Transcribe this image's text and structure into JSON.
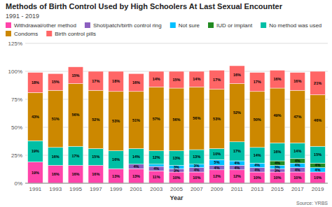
{
  "chart_data": {
    "type": "bar",
    "stacked": true,
    "title": "Methods of Birth Control Used by High Schoolers At Last Sexual Encounter",
    "subtitle": "1991 - 2019",
    "xlabel": "Year",
    "source": "Source: YRBS",
    "categories": [
      "1991",
      "1993",
      "1995",
      "1997",
      "1999",
      "2001",
      "2003",
      "2005",
      "2007",
      "2009",
      "2011",
      "2013",
      "2015",
      "2017",
      "2019"
    ],
    "series": [
      {
        "name": "Withdrawal/other method",
        "color": "#FF44AA",
        "values": [
          19,
          16,
          16,
          16,
          13,
          13,
          11,
          10,
          10,
          12,
          12,
          10,
          10,
          10,
          10
        ],
        "value_labels": [
          "19%",
          "16%",
          "16%",
          "16%",
          "13%",
          "13%",
          "11%",
          "10%",
          "10%",
          "12%",
          "12%",
          "10%",
          "10%",
          "10%",
          "10%"
        ]
      },
      {
        "name": "Shot/patch/birth control ring",
        "color": "#8B5FBF",
        "values": [
          0,
          0,
          0,
          0,
          0,
          4,
          4,
          3,
          4,
          4,
          4,
          4,
          3,
          4,
          0
        ],
        "value_labels": [
          null,
          null,
          null,
          null,
          null,
          "4%",
          "4%",
          "3%",
          "4%",
          "4%",
          "4%",
          "4%",
          "3%",
          "4%",
          null
        ]
      },
      {
        "name": "Not sure",
        "color": "#00BFFF",
        "values": [
          0,
          0,
          0,
          0,
          0,
          0,
          2,
          3,
          3,
          5,
          4,
          4,
          3,
          4,
          4
        ],
        "value_labels": [
          null,
          null,
          null,
          null,
          null,
          null,
          null,
          "3%",
          "3%",
          "5%",
          "4%",
          "4%",
          "3%",
          "4%",
          "4%"
        ]
      },
      {
        "name": "IUD or implant",
        "color": "#228B22",
        "values": [
          0,
          0,
          0,
          0,
          0,
          0,
          0,
          0,
          0,
          0,
          0,
          0,
          4,
          4,
          4
        ],
        "value_labels": [
          null,
          null,
          null,
          null,
          null,
          null,
          null,
          null,
          null,
          null,
          null,
          null,
          "4%",
          "4%",
          "4%"
        ]
      },
      {
        "name": "No method was used",
        "color": "#00BFA5",
        "values": [
          19,
          16,
          17,
          15,
          16,
          14,
          12,
          13,
          13,
          10,
          17,
          14,
          16,
          14,
          15
        ],
        "value_labels": [
          "19%",
          "16%",
          "17%",
          "15%",
          "16%",
          "14%",
          "12%",
          "13%",
          "13%",
          "10%",
          "17%",
          "14%",
          "16%",
          "14%",
          "15%"
        ]
      },
      {
        "name": "Condoms",
        "color": "#CC8800",
        "values": [
          43,
          51,
          56,
          52,
          53,
          51,
          57,
          56,
          56,
          53,
          52,
          50,
          49,
          47,
          46
        ],
        "value_labels": [
          "43%",
          "51%",
          "56%",
          "52%",
          "53%",
          "51%",
          "57%",
          "56%",
          "56%",
          "53%",
          "52%",
          "50%",
          "49%",
          "47%",
          "46%"
        ]
      },
      {
        "name": "Birth control pills",
        "color": "#FF6666",
        "values": [
          18,
          15,
          15,
          17,
          18,
          16,
          14,
          15,
          14,
          17,
          16,
          17,
          16,
          16,
          21
        ],
        "value_labels": [
          "18%",
          "15%",
          "15%",
          "17%",
          "18%",
          "16%",
          "14%",
          "15%",
          "14%",
          "17%",
          "16%",
          "17%",
          "16%",
          "16%",
          "21%"
        ]
      }
    ],
    "ylim": [
      0,
      125
    ],
    "yticks": [
      {
        "value": 0,
        "label": "0%"
      },
      {
        "value": 25,
        "label": "25%"
      },
      {
        "value": 50,
        "label": "50%"
      },
      {
        "value": 75,
        "label": "75%"
      },
      {
        "value": 100,
        "label": "100%"
      },
      {
        "value": 125,
        "label": "125%"
      }
    ],
    "grid": true,
    "legend": "top",
    "data_labels": true
  }
}
